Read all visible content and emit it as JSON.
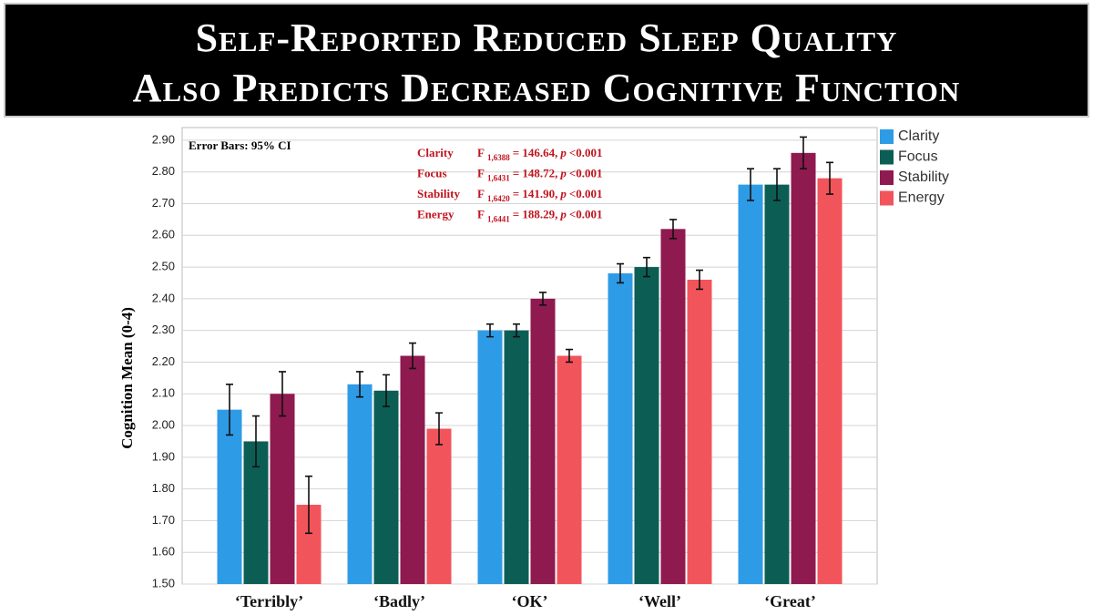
{
  "chart_data": {
    "type": "bar",
    "title_lines": [
      "Self-Reported Reduced Sleep Quality",
      "Also Predicts Decreased Cognitive Function"
    ],
    "y_label": "Cognition Mean (0-4)",
    "error_note": "Error Bars: 95% CI",
    "stats": [
      {
        "name": "Clarity",
        "f": "F",
        "df": "1,6388",
        "stat": "= 146.64,",
        "p": "p",
        "threshold": "<0.001"
      },
      {
        "name": "Focus",
        "f": "F",
        "df": "1,6431",
        "stat": "= 148.72,",
        "p": "p",
        "threshold": "<0.001"
      },
      {
        "name": "Stability",
        "f": "F",
        "df": "1,6420",
        "stat": "= 141.90,",
        "p": "p",
        "threshold": "<0.001"
      },
      {
        "name": "Energy",
        "f": "F",
        "df": "1,6441",
        "stat": "= 188.29,",
        "p": "p",
        "threshold": "<0.001"
      }
    ],
    "categories": [
      "‘Terribly’",
      "‘Badly’",
      "‘OK’",
      "‘Well’",
      "‘Great’"
    ],
    "series": [
      {
        "name": "Clarity",
        "color": "#2e9be6",
        "values": [
          2.05,
          2.13,
          2.3,
          2.48,
          2.76
        ],
        "errors": [
          0.08,
          0.04,
          0.02,
          0.03,
          0.05
        ]
      },
      {
        "name": "Focus",
        "color": "#0c5e55",
        "values": [
          1.95,
          2.11,
          2.3,
          2.5,
          2.76
        ],
        "errors": [
          0.08,
          0.05,
          0.02,
          0.03,
          0.05
        ]
      },
      {
        "name": "Stability",
        "color": "#8f1a4f",
        "values": [
          2.1,
          2.22,
          2.4,
          2.62,
          2.86
        ],
        "errors": [
          0.07,
          0.04,
          0.02,
          0.03,
          0.05
        ]
      },
      {
        "name": "Energy",
        "color": "#f2545b",
        "values": [
          1.75,
          1.99,
          2.22,
          2.46,
          2.78
        ],
        "errors": [
          0.09,
          0.05,
          0.02,
          0.03,
          0.05
        ]
      }
    ],
    "ylim": [
      1.5,
      2.94
    ],
    "yticks": [
      {
        "value": 1.5,
        "label": "1.50"
      },
      {
        "value": 1.6,
        "label": "1.60"
      },
      {
        "value": 1.7,
        "label": "1.70"
      },
      {
        "value": 1.8,
        "label": "1.80"
      },
      {
        "value": 1.9,
        "label": "1.90"
      },
      {
        "value": 2.0,
        "label": "2.00"
      },
      {
        "value": 2.1,
        "label": "2.10"
      },
      {
        "value": 2.2,
        "label": "2.20"
      },
      {
        "value": 2.3,
        "label": "2.30"
      },
      {
        "value": 2.4,
        "label": "2.40"
      },
      {
        "value": 2.5,
        "label": "2.50"
      },
      {
        "value": 2.6,
        "label": "2.60"
      },
      {
        "value": 2.7,
        "label": "2.70"
      },
      {
        "value": 2.8,
        "label": "2.80"
      },
      {
        "value": 2.9,
        "label": "2.90"
      }
    ],
    "grid": true,
    "legend": "right"
  }
}
